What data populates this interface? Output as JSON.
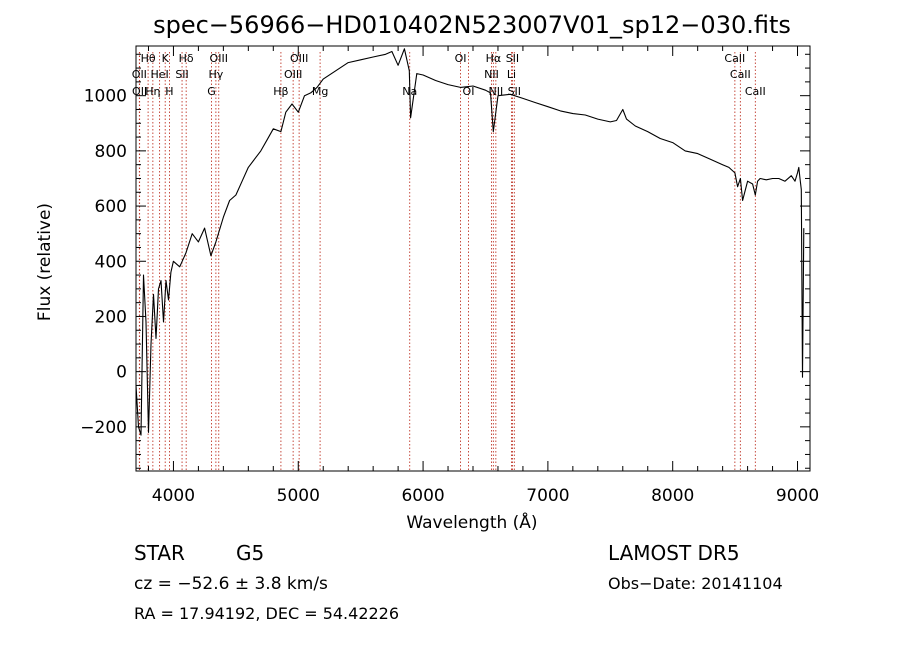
{
  "chart_data": {
    "type": "line",
    "title": "spec−56966−HD010402N523007V01_sp12−030.fits",
    "xlabel": "Wavelength (Å)",
    "ylabel": "Flux (relative)",
    "xlim": [
      3700,
      9100
    ],
    "ylim": [
      -360,
      1180
    ],
    "x_ticks": [
      4000,
      5000,
      6000,
      7000,
      8000,
      9000
    ],
    "x_tick_labels": [
      "4000",
      "5000",
      "6000",
      "7000",
      "8000",
      "9000"
    ],
    "y_ticks": [
      -200,
      0,
      200,
      400,
      600,
      800,
      1000
    ],
    "y_tick_labels": [
      "−200",
      "0",
      "200",
      "400",
      "600",
      "800",
      "1000"
    ],
    "grid": false,
    "series": [
      {
        "color": "#000000",
        "x": [
          3700,
          3720,
          3740,
          3760,
          3780,
          3800,
          3820,
          3840,
          3860,
          3880,
          3900,
          3920,
          3940,
          3960,
          3980,
          4000,
          4050,
          4100,
          4150,
          4200,
          4250,
          4300,
          4340,
          4400,
          4450,
          4500,
          4550,
          4600,
          4650,
          4700,
          4750,
          4800,
          4861,
          4900,
          4950,
          5000,
          5050,
          5100,
          5150,
          5200,
          5300,
          5400,
          5500,
          5600,
          5700,
          5750,
          5800,
          5850,
          5890,
          5900,
          5950,
          6000,
          6100,
          6200,
          6300,
          6400,
          6500,
          6540,
          6563,
          6600,
          6700,
          6800,
          6900,
          7000,
          7100,
          7200,
          7300,
          7400,
          7500,
          7550,
          7600,
          7630,
          7700,
          7800,
          7900,
          8000,
          8100,
          8200,
          8300,
          8400,
          8450,
          8498,
          8520,
          8542,
          8560,
          8600,
          8640,
          8662,
          8680,
          8700,
          8750,
          8800,
          8850,
          8900,
          8950,
          8980,
          9000,
          9010,
          9020,
          9030,
          9040,
          9050
        ],
        "y": [
          -50,
          -200,
          -230,
          350,
          180,
          -220,
          100,
          280,
          120,
          300,
          330,
          180,
          330,
          260,
          360,
          400,
          380,
          430,
          500,
          470,
          520,
          420,
          470,
          560,
          620,
          640,
          690,
          740,
          770,
          800,
          840,
          880,
          870,
          940,
          970,
          940,
          1000,
          1010,
          1030,
          1060,
          1090,
          1120,
          1130,
          1140,
          1150,
          1160,
          1110,
          1170,
          1090,
          920,
          1080,
          1075,
          1055,
          1040,
          1030,
          1035,
          1020,
          1010,
          870,
          1000,
          1005,
          990,
          975,
          960,
          945,
          935,
          930,
          915,
          905,
          910,
          950,
          915,
          890,
          870,
          845,
          830,
          800,
          790,
          770,
          750,
          740,
          720,
          670,
          700,
          620,
          690,
          680,
          640,
          690,
          700,
          695,
          700,
          700,
          690,
          710,
          690,
          720,
          740,
          700,
          660,
          -20,
          520
        ]
      }
    ],
    "line_markers": [
      {
        "label": "Hθ",
        "wavelength": 3797,
        "row": 0
      },
      {
        "label": "K",
        "wavelength": 3934,
        "row": 0
      },
      {
        "label": "Hδ",
        "wavelength": 4102,
        "row": 0
      },
      {
        "label": "OIII",
        "wavelength": 4363,
        "row": 0
      },
      {
        "label": "OIII",
        "wavelength": 5007,
        "row": 0
      },
      {
        "label": "OI",
        "wavelength": 6300,
        "row": 0
      },
      {
        "label": "Hα",
        "wavelength": 6563,
        "row": 0
      },
      {
        "label": "SII",
        "wavelength": 6716,
        "row": 0
      },
      {
        "label": "CaII",
        "wavelength": 8498,
        "row": 0
      },
      {
        "label": "OII",
        "wavelength": 3727,
        "row": 1
      },
      {
        "label": "HeI",
        "wavelength": 3889,
        "row": 1
      },
      {
        "label": "SII",
        "wavelength": 4069,
        "row": 1
      },
      {
        "label": "Hγ",
        "wavelength": 4340,
        "row": 1
      },
      {
        "label": "OIII",
        "wavelength": 4959,
        "row": 1
      },
      {
        "label": "NII",
        "wavelength": 6548,
        "row": 1
      },
      {
        "label": "Li",
        "wavelength": 6708,
        "row": 1
      },
      {
        "label": "CaII",
        "wavelength": 8542,
        "row": 1
      },
      {
        "label": "OII",
        "wavelength": 3729,
        "row": 2
      },
      {
        "label": "Hη",
        "wavelength": 3835,
        "row": 2
      },
      {
        "label": "H",
        "wavelength": 3968,
        "row": 2
      },
      {
        "label": "G",
        "wavelength": 4305,
        "row": 2
      },
      {
        "label": "Hβ",
        "wavelength": 4861,
        "row": 2
      },
      {
        "label": "Mg",
        "wavelength": 5175,
        "row": 2
      },
      {
        "label": "Na",
        "wavelength": 5893,
        "row": 2
      },
      {
        "label": "OI",
        "wavelength": 6364,
        "row": 2
      },
      {
        "label": "NII",
        "wavelength": 6583,
        "row": 2
      },
      {
        "label": "SII",
        "wavelength": 6731,
        "row": 2
      },
      {
        "label": "CaII",
        "wavelength": 8662,
        "row": 2
      }
    ],
    "marker_line_color": "#c0392b"
  },
  "info": {
    "object_class": "STAR",
    "subclass": "G5",
    "survey": "LAMOST DR5",
    "redshift_text": "cz = −52.6 ± 3.8 km/s",
    "obs_date_text": "Obs−Date: 20141104",
    "coords_text": "RA =  17.94192, DEC =  54.42226"
  }
}
